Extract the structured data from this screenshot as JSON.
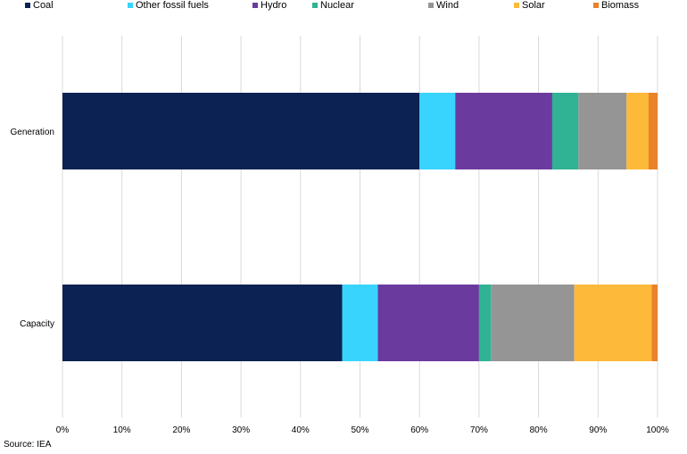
{
  "chart_data": {
    "type": "bar",
    "orientation": "horizontal",
    "stacked": true,
    "categories": [
      "Generation",
      "Capacity"
    ],
    "series": [
      {
        "name": "Coal",
        "color": "#0c2252",
        "values": [
          60.0,
          47.0
        ]
      },
      {
        "name": "Other fossil fuels",
        "color": "#38d4fd",
        "values": [
          6.0,
          6.0
        ]
      },
      {
        "name": "Hydro",
        "color": "#6b3a9f",
        "values": [
          16.3,
          17.0
        ]
      },
      {
        "name": "Nuclear",
        "color": "#30b294",
        "values": [
          4.4,
          2.0
        ]
      },
      {
        "name": "Wind",
        "color": "#959595",
        "values": [
          8.1,
          14.0
        ]
      },
      {
        "name": "Solar",
        "color": "#fdb93a",
        "values": [
          3.7,
          13.0
        ]
      },
      {
        "name": "Biomass",
        "color": "#e98228",
        "values": [
          1.5,
          1.0
        ]
      }
    ],
    "xlim": [
      0,
      100
    ],
    "x_ticks": [
      "0%",
      "10%",
      "20%",
      "30%",
      "40%",
      "50%",
      "60%",
      "70%",
      "80%",
      "90%",
      "100%"
    ],
    "grid": true,
    "legend_position": "top"
  },
  "source": "Source: IEA"
}
